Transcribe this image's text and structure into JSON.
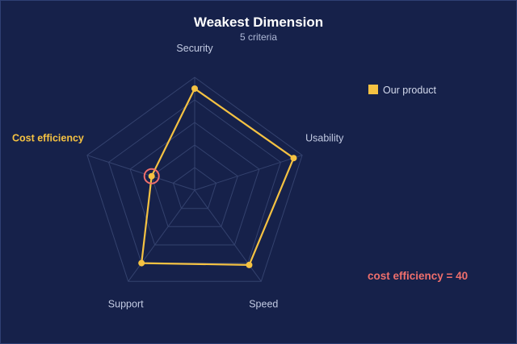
{
  "chart_data": {
    "type": "radar",
    "title": "Weakest Dimension",
    "subtitle": "5 criteria",
    "axes": [
      "Security",
      "Usability",
      "Speed",
      "Support",
      "Cost efficiency"
    ],
    "rmax": 100,
    "grid_levels": 5,
    "grid": true,
    "legend_position": "top-right",
    "series": [
      {
        "name": "Our product",
        "values": [
          90,
          92,
          82,
          80,
          40
        ],
        "color": "#f5c242"
      }
    ],
    "highlight": {
      "axis": "Cost efficiency",
      "index": 4,
      "color": "#ef6f6c"
    },
    "annotation": "cost efficiency = 40"
  }
}
